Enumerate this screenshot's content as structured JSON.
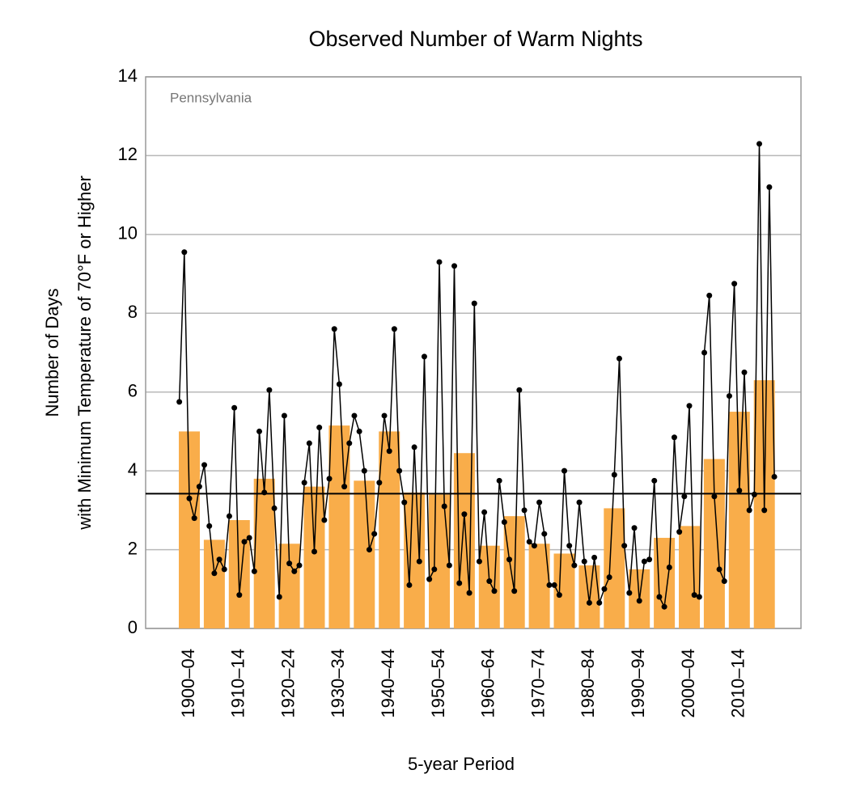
{
  "chart_data": {
    "type": "bar",
    "title": "Observed Number of Warm Nights",
    "annotation": "Pennsylvania",
    "x_label": "5-year Period",
    "y_label": [
      "Number of Days",
      "with Minimum Temperature of 70°F or Higher"
    ],
    "categories": [
      "1900–04",
      null,
      "1910–14",
      null,
      "1920–24",
      null,
      "1930–34",
      null,
      "1940–44",
      null,
      "1950–54",
      null,
      "1960–64",
      null,
      "1970–74",
      null,
      "1980–84",
      null,
      "1990–94",
      null,
      "2000–04",
      null,
      "2010–14",
      null
    ],
    "bars": {
      "color": "#f9ad4a",
      "values": [
        5.0,
        2.25,
        2.75,
        3.8,
        2.15,
        3.6,
        5.15,
        3.75,
        5.0,
        3.45,
        3.4,
        4.45,
        2.1,
        2.85,
        2.15,
        1.9,
        1.6,
        3.05,
        1.5,
        2.3,
        2.6,
        4.3,
        5.5,
        6.3
      ]
    },
    "annual": {
      "color": "#000000",
      "per_category": 5,
      "values": [
        5.75,
        9.55,
        3.3,
        2.8,
        3.6,
        4.15,
        2.6,
        1.4,
        1.75,
        1.5,
        2.85,
        5.6,
        0.85,
        2.2,
        2.3,
        1.45,
        5.0,
        3.45,
        6.05,
        3.05,
        0.8,
        5.4,
        1.65,
        1.45,
        1.6,
        3.7,
        4.7,
        1.95,
        5.1,
        2.75,
        3.8,
        7.6,
        6.2,
        3.6,
        4.7,
        5.4,
        5.0,
        4.0,
        2.0,
        2.4,
        3.7,
        5.4,
        4.5,
        7.6,
        4.0,
        3.2,
        1.1,
        4.6,
        1.7,
        6.9,
        1.25,
        1.5,
        9.3,
        3.1,
        1.6,
        9.2,
        1.15,
        2.9,
        0.9,
        8.25,
        1.7,
        2.95,
        1.2,
        0.95,
        3.75,
        2.7,
        1.75,
        0.95,
        6.05,
        3.0,
        2.2,
        2.1,
        3.2,
        2.4,
        1.1,
        1.1,
        0.85,
        4.0,
        2.1,
        1.6,
        3.2,
        1.7,
        0.65,
        1.8,
        0.65,
        1.0,
        1.3,
        3.9,
        6.85,
        2.1,
        0.9,
        2.55,
        0.7,
        1.7,
        1.75,
        3.75,
        0.8,
        0.55,
        1.55,
        4.85,
        2.45,
        3.35,
        5.65,
        0.85,
        0.8,
        7.0,
        8.45,
        3.35,
        1.5,
        1.2,
        5.9,
        8.75,
        3.5,
        6.5,
        3.0,
        3.4,
        12.3,
        3.0,
        11.2,
        3.85
      ]
    },
    "reference_line": 3.42,
    "ylim": [
      0,
      14
    ],
    "yticks": [
      0,
      2,
      4,
      6,
      8,
      10,
      12,
      14
    ],
    "grid": true
  }
}
